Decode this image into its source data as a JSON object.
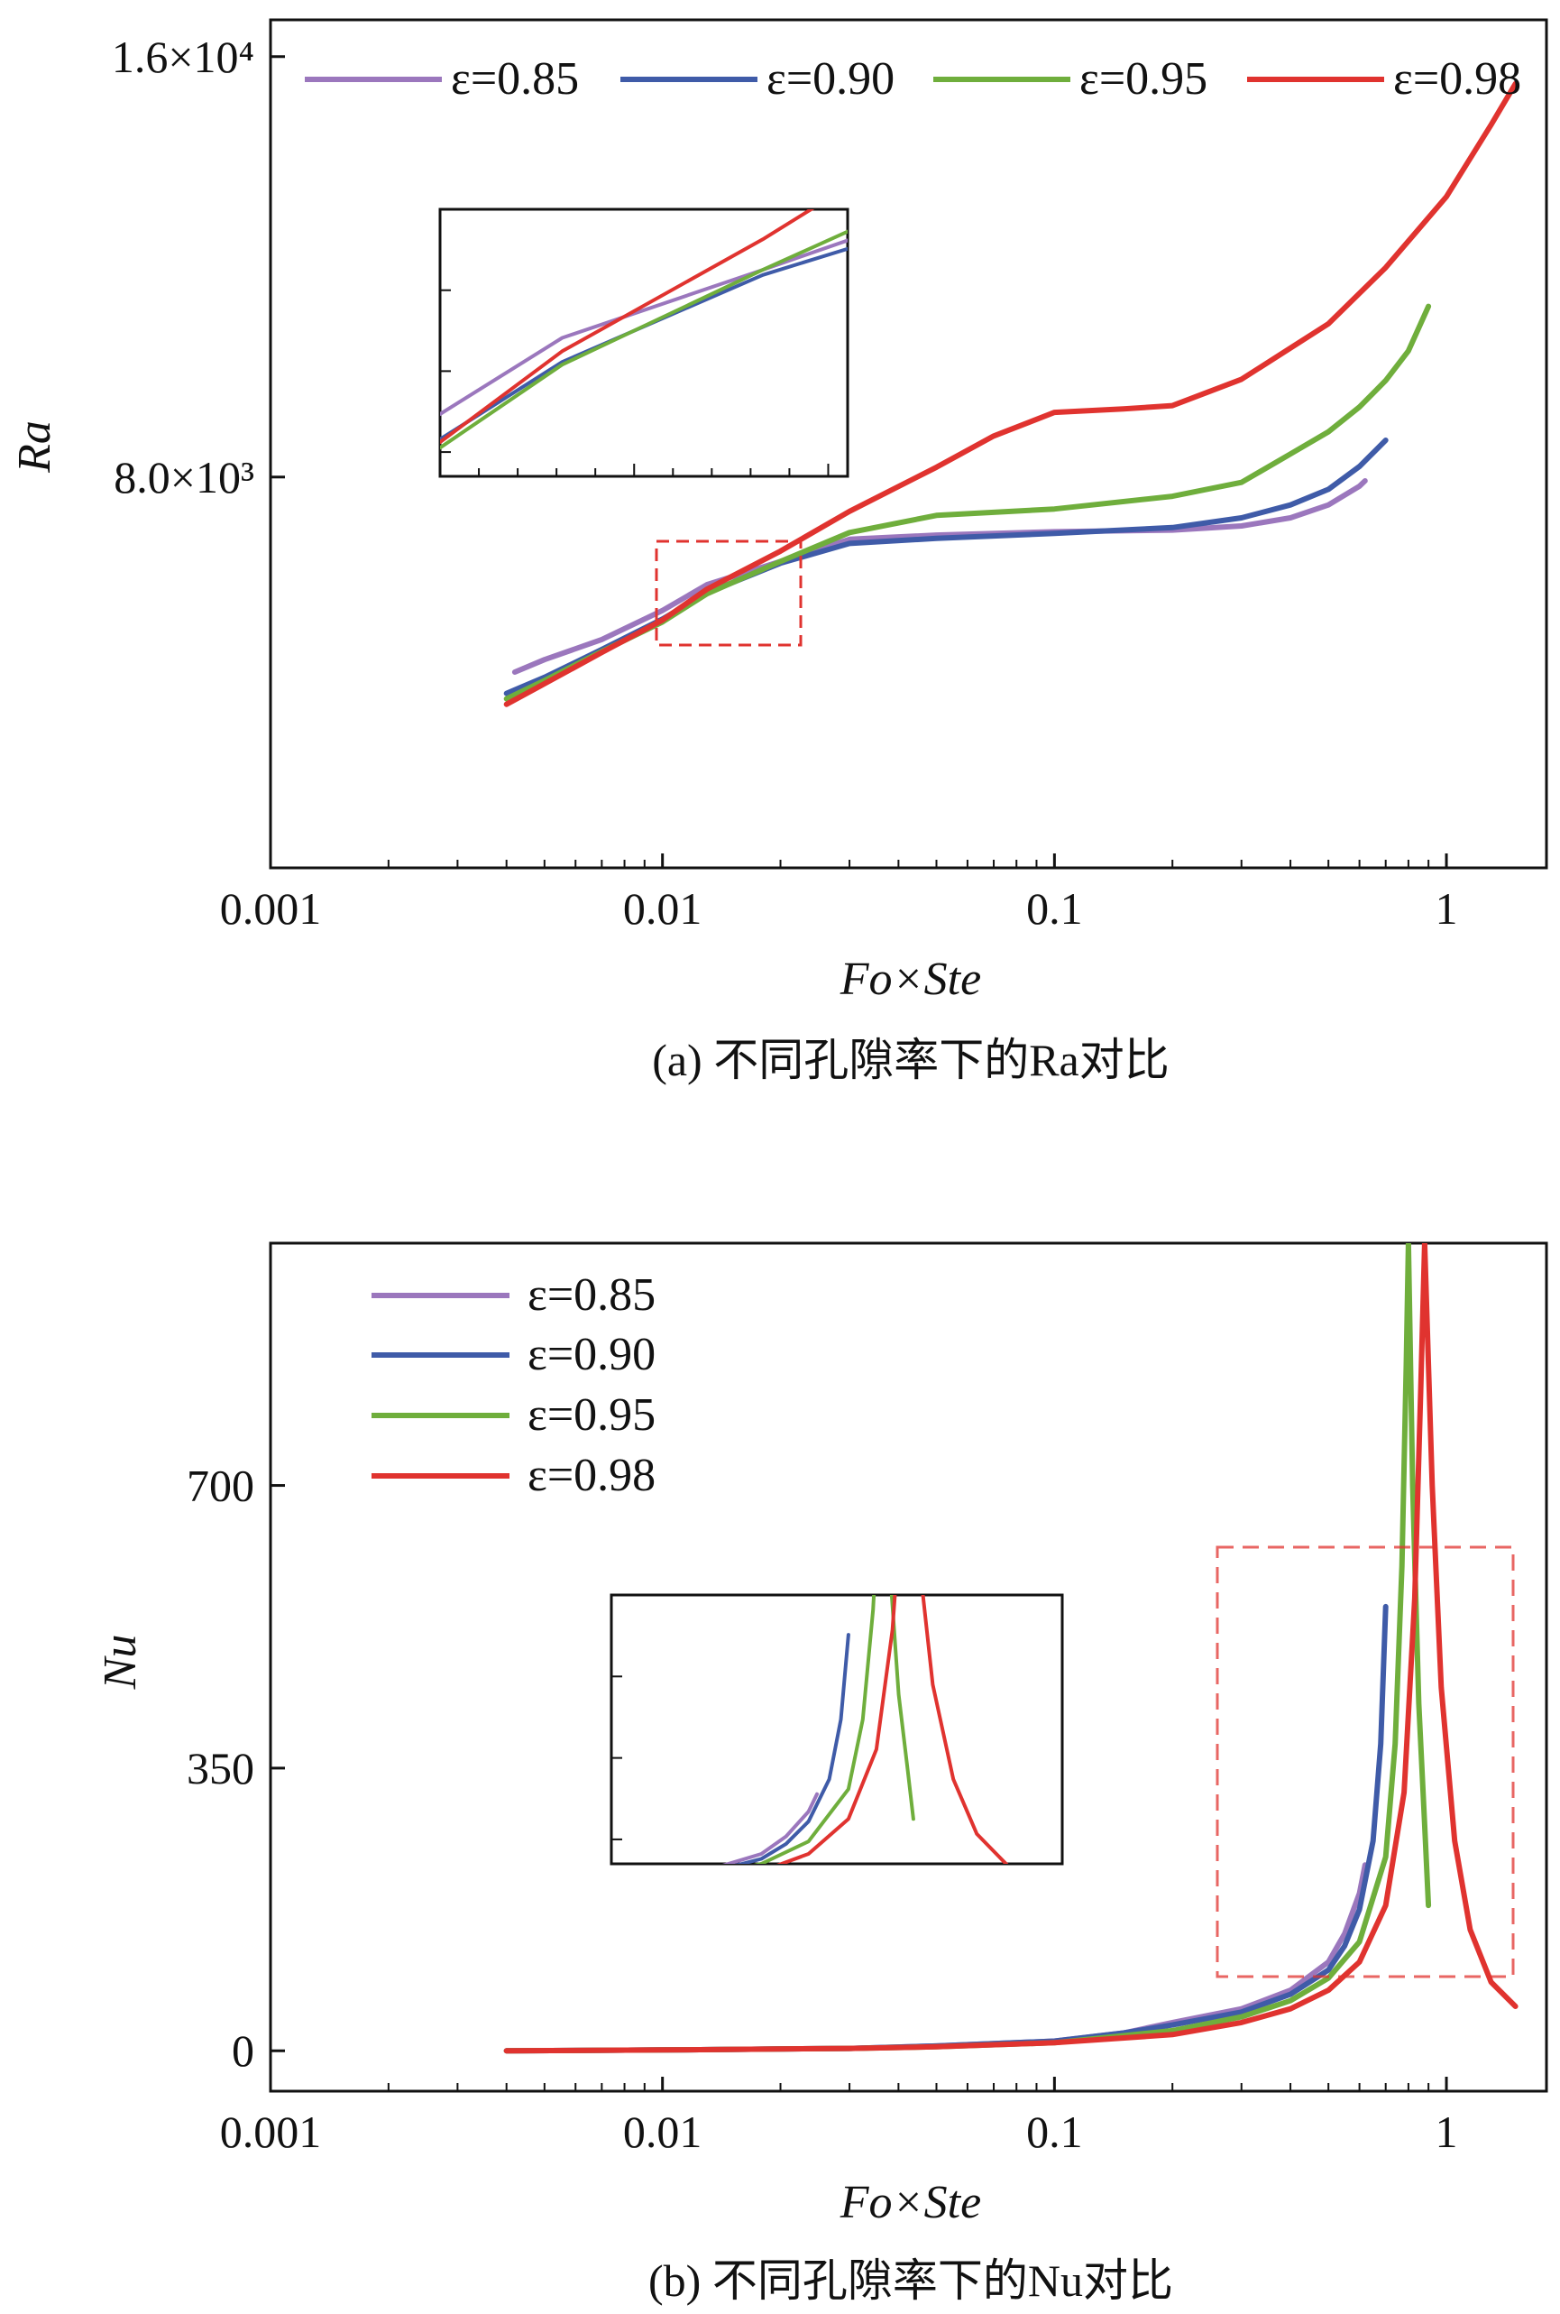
{
  "colors": {
    "eps085": "#9b77bd",
    "eps090": "#3f5ba8",
    "eps095": "#6fae3c",
    "eps098": "#e0332f",
    "zoom_box": "#e0332f",
    "axis": "#111111"
  },
  "chart_data": [
    {
      "type": "line",
      "panel": "a",
      "caption": "(a) 不同孔隙率下的Ra对比",
      "xlabel": "Fo×Ste",
      "ylabel": "Ra",
      "xscale": "log",
      "xlim": [
        0.001,
        1.8
      ],
      "ylim": [
        4200,
        17000
      ],
      "xticks": [
        {
          "value": 0.001,
          "label": "0.001"
        },
        {
          "value": 0.01,
          "label": "0.01"
        },
        {
          "value": 0.1,
          "label": "0.1"
        },
        {
          "value": 1,
          "label": "1"
        }
      ],
      "yticks": [
        {
          "value": 8000,
          "label": "8.0×10³"
        },
        {
          "value": 16000,
          "label": "1.6×10⁴"
        }
      ],
      "legend_position": "top",
      "series": [
        {
          "name": "ε=0.85",
          "color_key": "eps085",
          "x": [
            0.0042,
            0.005,
            0.007,
            0.01,
            0.013,
            0.02,
            0.03,
            0.05,
            0.1,
            0.2,
            0.3,
            0.4,
            0.5,
            0.6,
            0.62
          ],
          "y": [
            5800,
            5920,
            6120,
            6420,
            6700,
            6960,
            7220,
            7270,
            7310,
            7330,
            7380,
            7480,
            7640,
            7880,
            7950
          ]
        },
        {
          "name": "ε=0.90",
          "color_key": "eps090",
          "x": [
            0.004,
            0.005,
            0.007,
            0.01,
            0.013,
            0.02,
            0.03,
            0.05,
            0.1,
            0.2,
            0.3,
            0.4,
            0.5,
            0.6,
            0.7
          ],
          "y": [
            5600,
            5750,
            6020,
            6330,
            6610,
            6940,
            7170,
            7230,
            7290,
            7360,
            7480,
            7640,
            7840,
            8140,
            8500
          ]
        },
        {
          "name": "ε=0.95",
          "color_key": "eps095",
          "x": [
            0.004,
            0.005,
            0.007,
            0.01,
            0.013,
            0.02,
            0.03,
            0.05,
            0.1,
            0.2,
            0.3,
            0.4,
            0.5,
            0.6,
            0.7,
            0.8,
            0.9
          ],
          "y": [
            5550,
            5720,
            6000,
            6300,
            6600,
            6960,
            7300,
            7510,
            7590,
            7750,
            7930,
            8310,
            8620,
            8980,
            9380,
            9850,
            10600
          ]
        },
        {
          "name": "ε=0.98",
          "color_key": "eps098",
          "x": [
            0.004,
            0.005,
            0.007,
            0.01,
            0.013,
            0.02,
            0.03,
            0.05,
            0.07,
            0.1,
            0.15,
            0.2,
            0.3,
            0.5,
            0.7,
            1.0,
            1.3,
            1.5
          ],
          "y": [
            5500,
            5690,
            5990,
            6320,
            6650,
            7080,
            7560,
            8130,
            8560,
            8900,
            8950,
            9000,
            9400,
            10300,
            11300,
            12700,
            14300,
            15300
          ]
        }
      ],
      "inset": {
        "title": "",
        "xlim": [
          0.01,
          0.024
        ],
        "ylim": [
          6200,
          7200
        ],
        "series_keys": [
          "eps085",
          "eps090",
          "eps095",
          "eps098"
        ]
      }
    },
    {
      "type": "line",
      "panel": "b",
      "caption": "(b) 不同孔隙率下的Nu对比",
      "xlabel": "Fo×Ste",
      "ylabel": "Nu",
      "xscale": "log",
      "xlim": [
        0.001,
        1.8
      ],
      "ylim": [
        -50,
        1000
      ],
      "xticks": [
        {
          "value": 0.001,
          "label": "0.001"
        },
        {
          "value": 0.01,
          "label": "0.01"
        },
        {
          "value": 0.1,
          "label": "0.1"
        },
        {
          "value": 1,
          "label": "1"
        }
      ],
      "yticks": [
        {
          "value": 0,
          "label": "0"
        },
        {
          "value": 350,
          "label": "350"
        },
        {
          "value": 700,
          "label": "700"
        }
      ],
      "legend_position": "top-left",
      "series": [
        {
          "name": "ε=0.85",
          "color_key": "eps085",
          "x": [
            0.004,
            0.01,
            0.03,
            0.05,
            0.1,
            0.15,
            0.2,
            0.3,
            0.4,
            0.5,
            0.55,
            0.6,
            0.62
          ],
          "y": [
            0,
            1,
            3,
            6,
            12,
            22,
            35,
            52,
            75,
            110,
            145,
            195,
            230
          ]
        },
        {
          "name": "ε=0.90",
          "color_key": "eps090",
          "x": [
            0.004,
            0.01,
            0.03,
            0.05,
            0.1,
            0.15,
            0.2,
            0.3,
            0.4,
            0.5,
            0.55,
            0.6,
            0.65,
            0.68,
            0.7
          ],
          "y": [
            0,
            1,
            3,
            6,
            12,
            22,
            32,
            48,
            70,
            100,
            130,
            175,
            260,
            380,
            550
          ]
        },
        {
          "name": "ε=0.95",
          "color_key": "eps095",
          "x": [
            0.004,
            0.01,
            0.03,
            0.05,
            0.1,
            0.2,
            0.3,
            0.4,
            0.5,
            0.6,
            0.7,
            0.74,
            0.77,
            0.79,
            0.8,
            0.8,
            0.82,
            0.85,
            0.88,
            0.9
          ],
          "y": [
            0,
            1,
            3,
            5,
            10,
            25,
            42,
            62,
            90,
            135,
            240,
            380,
            600,
            850,
            1000,
            1000,
            700,
            430,
            280,
            180
          ]
        },
        {
          "name": "ε=0.98",
          "color_key": "eps098",
          "x": [
            0.004,
            0.01,
            0.03,
            0.05,
            0.1,
            0.2,
            0.3,
            0.4,
            0.5,
            0.6,
            0.7,
            0.78,
            0.83,
            0.86,
            0.88,
            0.88,
            0.92,
            0.97,
            1.05,
            1.15,
            1.3,
            1.5
          ],
          "y": [
            0,
            1,
            3,
            5,
            10,
            20,
            35,
            52,
            75,
            110,
            180,
            320,
            560,
            820,
            1000,
            1000,
            700,
            450,
            260,
            150,
            85,
            55
          ]
        }
      ],
      "inset": {
        "title": "",
        "xlim": [
          0.28,
          1.6
        ],
        "ylim": [
          90,
          630
        ],
        "series_keys": [
          "eps085",
          "eps090",
          "eps095",
          "eps098"
        ]
      }
    }
  ]
}
